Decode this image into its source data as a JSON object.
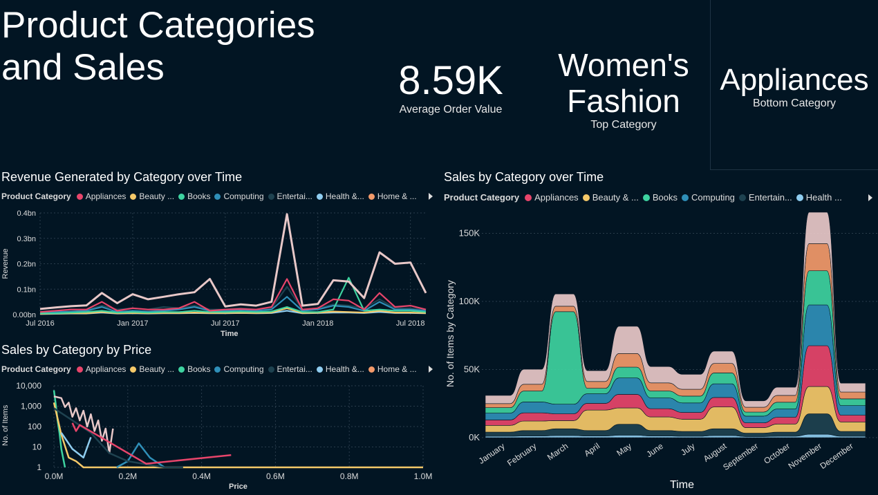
{
  "page": {
    "title": "Product Categories\nand Sales"
  },
  "kpis": {
    "aov": {
      "value": "8.59K",
      "label": "Average Order Value"
    },
    "top": {
      "value": "Women's\nFashion",
      "label": "Top Category"
    },
    "bottom": {
      "value": "Appliances",
      "label": "Bottom Category"
    }
  },
  "colors": {
    "background": "#021523",
    "appliances": "#e8456b",
    "beauty": "#f5c969",
    "books": "#3ed3a0",
    "computing": "#2f8fb8",
    "entertainment": "#1e4250",
    "health": "#8fcdf0",
    "home": "#f39a6a",
    "womens_fashion": "#e8c8c8"
  },
  "legend_small": {
    "title": "Product Category",
    "items": [
      {
        "label": "Appliances",
        "color": "#e8456b"
      },
      {
        "label": "Beauty ...",
        "color": "#f5c969"
      },
      {
        "label": "Books",
        "color": "#3ed3a0"
      },
      {
        "label": "Computing",
        "color": "#2f8fb8"
      },
      {
        "label": "Entertai...",
        "color": "#1e4250"
      },
      {
        "label": "Health &...",
        "color": "#8fcdf0"
      },
      {
        "label": "Home & ...",
        "color": "#f39a6a"
      }
    ]
  },
  "legend_right": {
    "title": "Product Category",
    "items": [
      {
        "label": "Appliances",
        "color": "#e8456b"
      },
      {
        "label": "Beauty & ...",
        "color": "#f5c969"
      },
      {
        "label": "Books",
        "color": "#3ed3a0"
      },
      {
        "label": "Computing",
        "color": "#2f8fb8"
      },
      {
        "label": "Entertain...",
        "color": "#1e4250"
      },
      {
        "label": "Health ...",
        "color": "#8fcdf0"
      }
    ]
  },
  "chart_data": [
    {
      "type": "line",
      "title": "Revenue Generated by Category over Time",
      "xlabel": "Time",
      "ylabel": "Revenue",
      "ylim": [
        0,
        0.4
      ],
      "y_ticks": [
        "0.00bn",
        "0.1bn",
        "0.2bn",
        "0.3bn",
        "0.4bn"
      ],
      "x_ticks": [
        "Jul 2016",
        "Jan 2017",
        "Jul 2017",
        "Jan 2018",
        "Jul 2018"
      ],
      "x": [
        "2016-07",
        "2016-08",
        "2016-09",
        "2016-10",
        "2016-11",
        "2016-12",
        "2017-01",
        "2017-02",
        "2017-03",
        "2017-04",
        "2017-05",
        "2017-06",
        "2017-07",
        "2017-08",
        "2017-09",
        "2017-10",
        "2017-11",
        "2017-12",
        "2018-01",
        "2018-02",
        "2018-03",
        "2018-04",
        "2018-05",
        "2018-06",
        "2018-07",
        "2018-08"
      ],
      "grid": true,
      "series": [
        {
          "name": "Women's Fashion",
          "color": "#e8c8c8",
          "values": [
            0.022,
            0.028,
            0.033,
            0.036,
            0.085,
            0.045,
            0.08,
            0.06,
            0.07,
            0.08,
            0.088,
            0.14,
            0.032,
            0.04,
            0.035,
            0.05,
            0.395,
            0.035,
            0.042,
            0.135,
            0.13,
            0.065,
            0.245,
            0.2,
            0.205,
            0.085
          ]
        },
        {
          "name": "Appliances",
          "color": "#e8456b",
          "values": [
            0.01,
            0.015,
            0.02,
            0.02,
            0.05,
            0.015,
            0.025,
            0.02,
            0.02,
            0.025,
            0.05,
            0.015,
            0.02,
            0.022,
            0.02,
            0.03,
            0.14,
            0.02,
            0.025,
            0.06,
            0.055,
            0.02,
            0.085,
            0.03,
            0.035,
            0.02
          ]
        },
        {
          "name": "Books",
          "color": "#3ed3a0",
          "values": [
            0.005,
            0.005,
            0.008,
            0.01,
            0.015,
            0.008,
            0.01,
            0.008,
            0.01,
            0.01,
            0.015,
            0.01,
            0.01,
            0.012,
            0.01,
            0.012,
            0.03,
            0.01,
            0.01,
            0.02,
            0.145,
            0.015,
            0.02,
            0.015,
            0.015,
            0.01
          ]
        },
        {
          "name": "Computing",
          "color": "#2f8fb8",
          "values": [
            0.008,
            0.01,
            0.012,
            0.015,
            0.03,
            0.01,
            0.015,
            0.012,
            0.015,
            0.02,
            0.03,
            0.015,
            0.015,
            0.018,
            0.015,
            0.02,
            0.07,
            0.015,
            0.02,
            0.035,
            0.03,
            0.015,
            0.05,
            0.02,
            0.02,
            0.015
          ]
        },
        {
          "name": "Entertainment",
          "color": "#1e4250",
          "values": [
            0.012,
            0.015,
            0.02,
            0.018,
            0.035,
            0.02,
            0.025,
            0.02,
            0.03,
            0.025,
            0.035,
            0.02,
            0.02,
            0.025,
            0.02,
            0.025,
            0.11,
            0.02,
            0.025,
            0.04,
            0.035,
            0.025,
            0.06,
            0.025,
            0.025,
            0.02
          ]
        },
        {
          "name": "Beauty & ...",
          "color": "#f5c969",
          "values": [
            0.003,
            0.004,
            0.005,
            0.005,
            0.01,
            0.005,
            0.006,
            0.005,
            0.006,
            0.006,
            0.008,
            0.006,
            0.006,
            0.007,
            0.006,
            0.008,
            0.025,
            0.006,
            0.007,
            0.012,
            0.01,
            0.008,
            0.015,
            0.008,
            0.008,
            0.006
          ]
        },
        {
          "name": "Health & ...",
          "color": "#8fcdf0",
          "values": [
            0.002,
            0.003,
            0.004,
            0.004,
            0.008,
            0.004,
            0.005,
            0.004,
            0.005,
            0.005,
            0.006,
            0.005,
            0.005,
            0.006,
            0.005,
            0.006,
            0.015,
            0.005,
            0.006,
            0.008,
            0.008,
            0.006,
            0.01,
            0.006,
            0.006,
            0.005
          ]
        }
      ]
    },
    {
      "type": "line",
      "title": "Sales by Category by Price",
      "xlabel": "Price",
      "ylabel": "No. of Items",
      "y_scale": "log",
      "ylim": [
        1,
        10000
      ],
      "y_ticks": [
        "1",
        "10",
        "100",
        "1,000",
        "10,000"
      ],
      "x_ticks": [
        "0.0M",
        "0.2M",
        "0.4M",
        "0.6M",
        "0.8M",
        "1.0M"
      ],
      "xlim": [
        0,
        1.0
      ],
      "grid": true,
      "series": [
        {
          "name": "Books",
          "color": "#3ed3a0",
          "x": [
            0,
            0.005,
            0.01,
            0.015,
            0.02,
            0.03
          ],
          "values": [
            6000,
            1200,
            200,
            50,
            8,
            1
          ]
        },
        {
          "name": "Women's Fashion",
          "color": "#e8c8c8",
          "x": [
            0.0,
            0.02,
            0.03,
            0.04,
            0.05,
            0.06,
            0.07,
            0.08,
            0.09,
            0.1,
            0.11,
            0.12,
            0.13,
            0.14,
            0.15,
            0.16
          ],
          "values": [
            3000,
            2500,
            900,
            1500,
            300,
            800,
            200,
            600,
            100,
            400,
            60,
            200,
            20,
            80,
            5,
            80
          ]
        },
        {
          "name": "Beauty & ...",
          "color": "#f5c969",
          "x": [
            0.0,
            0.02,
            0.04,
            0.06,
            0.08,
            1.0
          ],
          "values": [
            1500,
            40,
            3,
            2,
            1,
            1
          ]
        },
        {
          "name": "Computing",
          "color": "#2f8fb8",
          "x": [
            0.17,
            0.2,
            0.23,
            0.26,
            0.3
          ],
          "values": [
            1,
            2,
            15,
            3,
            1
          ]
        },
        {
          "name": "Entertainment",
          "color": "#1e4250",
          "x": [
            0.0,
            0.05,
            0.1,
            0.15,
            0.2,
            0.3,
            0.35
          ],
          "values": [
            800,
            200,
            50,
            5,
            2,
            1,
            1
          ]
        },
        {
          "name": "Appliances",
          "color": "#e8456b",
          "x": [
            0.05,
            0.06,
            0.07,
            0.25,
            0.48
          ],
          "values": [
            150,
            60,
            120,
            1.5,
            4
          ]
        },
        {
          "name": "Health & ...",
          "color": "#8fcdf0",
          "x": [
            0.02,
            0.05,
            0.08,
            0.1
          ],
          "values": [
            50,
            8,
            3,
            30
          ]
        }
      ]
    },
    {
      "type": "area",
      "title": "Sales by Category over Time",
      "xlabel": "Time",
      "ylabel": "No. of Items by Category",
      "ylim": [
        0,
        165000
      ],
      "y_ticks": [
        "0K",
        "50K",
        "100K",
        "150K"
      ],
      "categories": [
        "January",
        "February",
        "March",
        "April",
        "May",
        "June",
        "July",
        "August",
        "September",
        "October",
        "November",
        "December"
      ],
      "grid": true,
      "series": [
        {
          "name": "Health ...",
          "color": "#8fcdf0",
          "values": [
            1000,
            1200,
            1500,
            1200,
            1800,
            1200,
            1000,
            1500,
            800,
            1000,
            2500,
            1000
          ]
        },
        {
          "name": "Entertainment",
          "color": "#1e4250",
          "values": [
            3000,
            4000,
            5000,
            4000,
            8000,
            4000,
            3500,
            5000,
            2500,
            3000,
            15000,
            3500
          ]
        },
        {
          "name": "Beauty & ...",
          "color": "#f5c969",
          "values": [
            5000,
            7000,
            6000,
            15000,
            12000,
            10000,
            9000,
            16000,
            4000,
            6000,
            20000,
            7000
          ]
        },
        {
          "name": "Appliances",
          "color": "#e8456b",
          "values": [
            4000,
            6000,
            5000,
            5000,
            10000,
            6000,
            5000,
            7000,
            3500,
            5000,
            30000,
            5000
          ]
        },
        {
          "name": "Computing",
          "color": "#2f8fb8",
          "values": [
            5000,
            8000,
            7000,
            7000,
            12000,
            8000,
            7000,
            10000,
            5000,
            6000,
            30000,
            7000
          ]
        },
        {
          "name": "Books",
          "color": "#3ed3a0",
          "values": [
            4000,
            8000,
            68000,
            4000,
            8000,
            5000,
            5000,
            8000,
            3000,
            5000,
            25000,
            5000
          ]
        },
        {
          "name": "Home & ...",
          "color": "#f39a6a",
          "values": [
            3000,
            5000,
            4000,
            5000,
            10000,
            6000,
            5000,
            7000,
            3500,
            5000,
            20000,
            5000
          ]
        },
        {
          "name": "Women's Fashion",
          "color": "#e8c8c8",
          "values": [
            6000,
            11000,
            9000,
            8000,
            20000,
            12000,
            11000,
            9000,
            4700,
            6000,
            23000,
            6500
          ]
        }
      ]
    }
  ]
}
